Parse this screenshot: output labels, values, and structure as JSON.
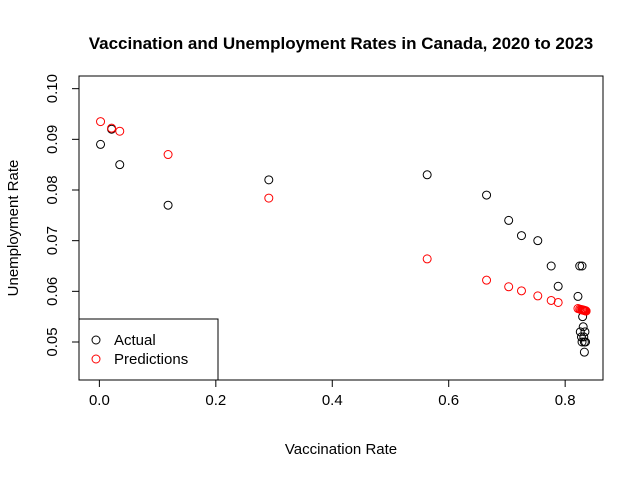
{
  "chart_data": {
    "type": "scatter",
    "title": "Vaccination and Unemployment Rates in Canada, 2020 to 2023",
    "xlabel": "Vaccination Rate",
    "ylabel": "Unemployment Rate",
    "xlim": [
      -0.035,
      0.865
    ],
    "ylim": [
      0.0425,
      0.1025
    ],
    "x_ticks": [
      0,
      0.2,
      0.4,
      0.6,
      0.8
    ],
    "x_tick_labels": [
      "0.0",
      "0.2",
      "0.4",
      "0.6",
      "0.8"
    ],
    "y_ticks": [
      0.05,
      0.06,
      0.07,
      0.08,
      0.09,
      0.1
    ],
    "y_tick_labels": [
      "0.05",
      "0.06",
      "0.07",
      "0.08",
      "0.09",
      "0.10"
    ],
    "grid": false,
    "legend_position": "bottom-left",
    "series": [
      {
        "name": "Actual",
        "color": "#000000",
        "marker": "open-circle",
        "points": [
          [
            0.002,
            0.089
          ],
          [
            0.021,
            0.092
          ],
          [
            0.035,
            0.085
          ],
          [
            0.118,
            0.077
          ],
          [
            0.291,
            0.082
          ],
          [
            0.563,
            0.083
          ],
          [
            0.665,
            0.079
          ],
          [
            0.703,
            0.074
          ],
          [
            0.725,
            0.071
          ],
          [
            0.753,
            0.07
          ],
          [
            0.776,
            0.065
          ],
          [
            0.788,
            0.061
          ],
          [
            0.822,
            0.059
          ],
          [
            0.825,
            0.065
          ],
          [
            0.829,
            0.065
          ],
          [
            0.826,
            0.052
          ],
          [
            0.828,
            0.051
          ],
          [
            0.83,
            0.055
          ],
          [
            0.831,
            0.053
          ],
          [
            0.832,
            0.051
          ],
          [
            0.833,
            0.05
          ],
          [
            0.834,
            0.052
          ],
          [
            0.835,
            0.05
          ],
          [
            0.833,
            0.048
          ],
          [
            0.829,
            0.05
          ]
        ]
      },
      {
        "name": "Predictions",
        "color": "#ff0000",
        "marker": "open-circle",
        "points": [
          [
            0.002,
            0.0935
          ],
          [
            0.021,
            0.0922
          ],
          [
            0.035,
            0.0916
          ],
          [
            0.118,
            0.087
          ],
          [
            0.291,
            0.0784
          ],
          [
            0.563,
            0.0664
          ],
          [
            0.665,
            0.0622
          ],
          [
            0.703,
            0.0609
          ],
          [
            0.725,
            0.0601
          ],
          [
            0.753,
            0.0591
          ],
          [
            0.776,
            0.0582
          ],
          [
            0.788,
            0.0578
          ],
          [
            0.822,
            0.0566
          ],
          [
            0.825,
            0.0565
          ],
          [
            0.827,
            0.0564
          ],
          [
            0.829,
            0.0564
          ],
          [
            0.83,
            0.0563
          ],
          [
            0.831,
            0.0563
          ],
          [
            0.832,
            0.0563
          ],
          [
            0.833,
            0.0562
          ],
          [
            0.834,
            0.0562
          ],
          [
            0.835,
            0.0562
          ],
          [
            0.836,
            0.0561
          ]
        ]
      }
    ]
  }
}
